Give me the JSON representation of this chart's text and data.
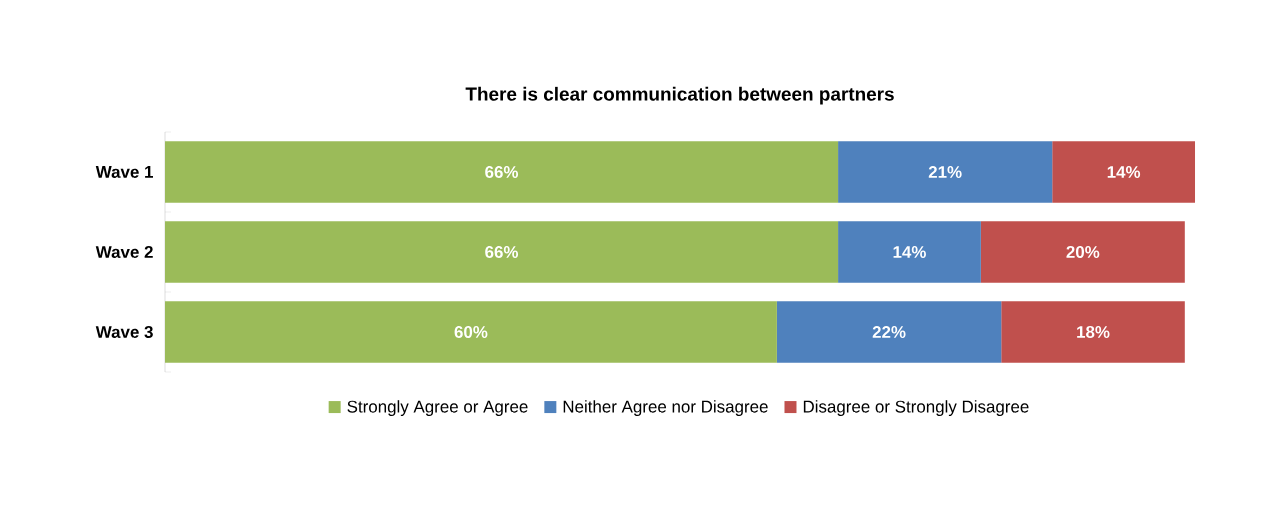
{
  "chart_data": {
    "type": "bar",
    "orientation": "horizontal",
    "stacked": true,
    "legend": "bottom",
    "title": "There is clear communication between partners",
    "categories": [
      "Wave 1",
      "Wave 2",
      "Wave 3"
    ],
    "series": [
      {
        "name": "Strongly Agree or Agree",
        "color": "#9bbb59",
        "values": [
          66,
          66,
          60
        ],
        "value_labels": [
          "66%",
          "66%",
          "60%"
        ]
      },
      {
        "name": "Neither Agree nor Disagree",
        "color": "#4f81bd",
        "values": [
          21,
          14,
          22
        ],
        "value_labels": [
          "21%",
          "14%",
          "22%"
        ]
      },
      {
        "name": "Disagree or Strongly Disagree",
        "color": "#c0504d",
        "values": [
          14,
          20,
          18
        ],
        "value_labels": [
          "14%",
          "20%",
          "18%"
        ]
      }
    ]
  }
}
